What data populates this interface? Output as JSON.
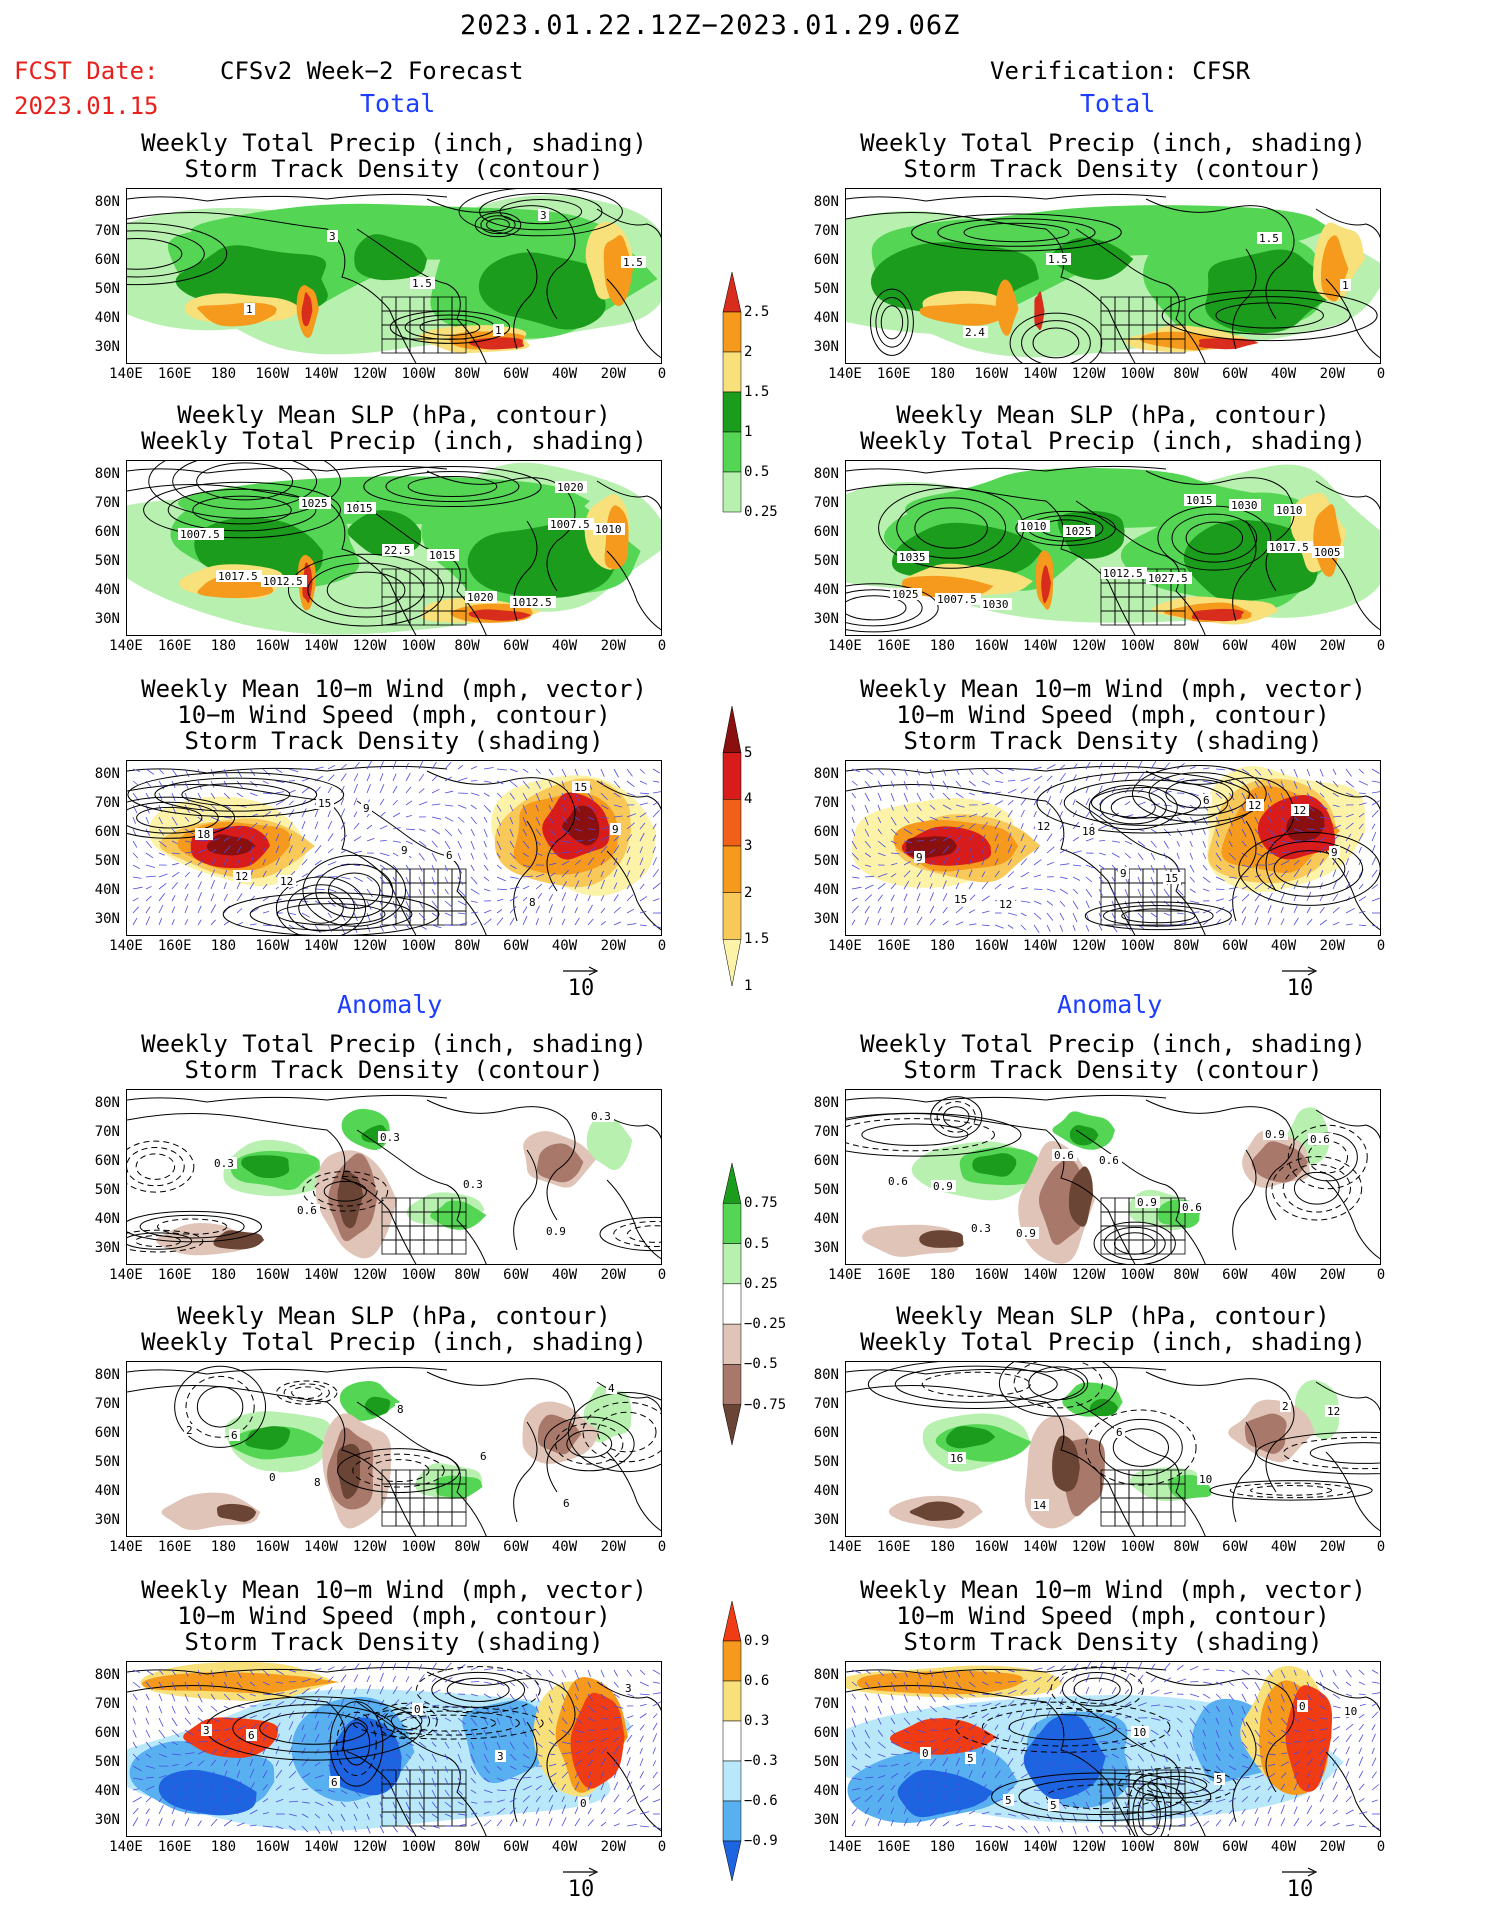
{
  "header": {
    "title": "2023.01.22.12Z−2023.01.29.06Z",
    "fcst_label": "FCST Date:",
    "fcst_date": "2023.01.15",
    "left_model": "CFSv2 Week−2 Forecast",
    "right_model": "Verification: CFSR"
  },
  "sections": {
    "total": "Total",
    "anomaly": "Anomaly"
  },
  "panel_titles": {
    "precip_storm": [
      "Weekly Total Precip (inch, shading)",
      "Storm Track Density (contour)"
    ],
    "slp_precip": [
      "Weekly Mean SLP (hPa, contour)",
      "Weekly Total Precip (inch, shading)"
    ],
    "wind": [
      "Weekly Mean 10−m Wind (mph, vector)",
      "10−m Wind Speed (mph, contour)",
      "Storm Track Density (shading)"
    ]
  },
  "axes": {
    "lat_labels": [
      "80N",
      "70N",
      "60N",
      "50N",
      "40N",
      "30N"
    ],
    "lon_labels": [
      "140E",
      "160E",
      "180",
      "160W",
      "140W",
      "120W",
      "100W",
      "80W",
      "60W",
      "40W",
      "20W",
      "0"
    ]
  },
  "vector_ref": "10",
  "colorbars": {
    "precip_total": {
      "labels": [
        "2.5",
        "2",
        "1.5",
        "1",
        "0.5",
        "0.25"
      ],
      "colors": [
        "#d82c1c",
        "#f59a1c",
        "#f8e07a",
        "#1c9c1c",
        "#54d654",
        "#b8f0b0"
      ]
    },
    "storm_total": {
      "labels": [
        "5",
        "4",
        "3",
        "2",
        "1.5",
        "1"
      ],
      "colors": [
        "#8a1010",
        "#d81c1c",
        "#f06018",
        "#f59a1c",
        "#f8c858",
        "#fdf3a8"
      ]
    },
    "precip_anom": {
      "labels": [
        "0.75",
        "0.5",
        "0.25",
        "−0.25",
        "−0.5",
        "−0.75"
      ],
      "colors": [
        "#1c9c1c",
        "#54d654",
        "#b8f0b0",
        "#ffffff",
        "#e0c4b8",
        "#a8786a",
        "#6a4434"
      ]
    },
    "storm_anom": {
      "labels": [
        "0.9",
        "0.6",
        "0.3",
        "−0.3",
        "−0.6",
        "−0.9"
      ],
      "colors": [
        "#f03c14",
        "#f59a1c",
        "#f8e07a",
        "#ffffff",
        "#b8e8fa",
        "#58b0f0",
        "#1c64e0"
      ]
    }
  },
  "contour_labels": {
    "f1": [
      "3",
      "1.5",
      "1",
      "3",
      "1.5",
      "1"
    ],
    "v1": [
      "1.5",
      "1",
      "2.4",
      "1.5"
    ],
    "f2": [
      "1020",
      "1007.5",
      "1012.5",
      "1015",
      "1015",
      "1012.5",
      "1010",
      "1017.5",
      "1025",
      "22.5",
      "1020",
      "1007.5"
    ],
    "v2": [
      "1010",
      "1035",
      "1030",
      "1025",
      "1027.5",
      "1030",
      "1005",
      "1007.5",
      "1010",
      "1012.5",
      "1015",
      "1017.5",
      "1025"
    ],
    "f3": [
      "15",
      "18",
      "12",
      "9",
      "6",
      "8",
      "9",
      "12",
      "15",
      "9"
    ],
    "v3": [
      "12",
      "9",
      "12",
      "18",
      "15",
      "12",
      "9",
      "15",
      "12",
      "9",
      "6"
    ],
    "f4": [
      "0.3",
      "0.3",
      "0.6",
      "0.3",
      "0.3",
      "0.9"
    ],
    "v4": [
      "0.6",
      "0.9",
      "0.9",
      "0.6",
      "0.6",
      "0.9",
      "0.6",
      "0.3",
      "0.6",
      "0.9"
    ],
    "f5": [
      "4",
      "6",
      "8",
      "8",
      "6",
      "6",
      "2",
      "0"
    ],
    "v5": [
      "12",
      "16",
      "14",
      "6",
      "10",
      "2"
    ],
    "f6": [
      "3",
      "6",
      "6",
      "0",
      "3",
      "0",
      "3"
    ],
    "v6": [
      "10",
      "5",
      "5",
      "10",
      "5",
      "0",
      "0",
      "5"
    ]
  }
}
